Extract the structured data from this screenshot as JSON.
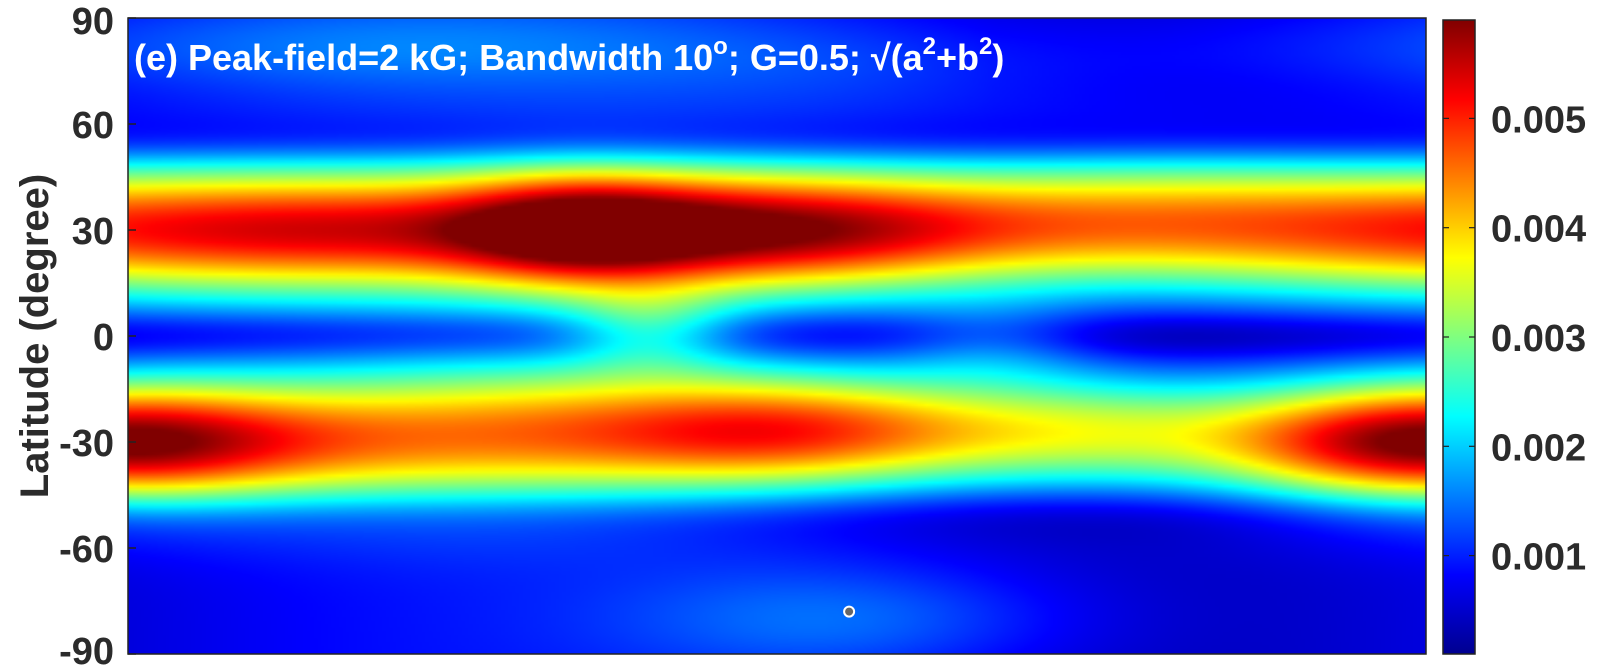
{
  "chart_data": {
    "type": "heatmap",
    "title": {
      "prefix": "(e) Peak-field=2 kG; Bandwidth 10",
      "sup1": "o",
      "mid": "; G=0.5; √(a",
      "sup2": "2",
      "mid2": "+b",
      "sup3": "2",
      "suffix": ")"
    },
    "ylabel": "Latitude (degree)",
    "xlabel": "",
    "ylim": [
      -90,
      90
    ],
    "yticks": [
      90,
      60,
      30,
      0,
      -30,
      -60,
      -90
    ],
    "ytick_labels": [
      "90",
      "60",
      "30",
      "0",
      "-30",
      "-60",
      "-90"
    ],
    "colorbar": {
      "colormap": "jet",
      "range": [
        0.0001,
        0.0059
      ],
      "ticks": [
        0.005,
        0.004,
        0.003,
        0.002,
        0.001
      ],
      "tick_labels": [
        "0.005",
        "0.004",
        "0.003",
        "0.002",
        "0.001"
      ]
    },
    "background_level": 0.0009,
    "features": [
      {
        "lon": 60,
        "lat": 30,
        "lon_width": 50,
        "lat_width": 13,
        "amp": 0.0035
      },
      {
        "lon": 180,
        "lat": 30,
        "lon_width": 55,
        "lat_width": 13,
        "amp": 0.0049
      },
      {
        "lon": 280,
        "lat": 33,
        "lon_width": 45,
        "lat_width": 14,
        "amp": 0.0024
      },
      {
        "lon": 345,
        "lat": 30,
        "lon_width": 45,
        "lat_width": 14,
        "amp": 0.0024
      },
      {
        "lon": 125,
        "lat": 30,
        "lon_width": 25,
        "lat_width": 12,
        "amp": 0.0019
      },
      {
        "lon": 20,
        "lat": -30,
        "lon_width": 55,
        "lat_width": 13,
        "amp": 0.0028
      },
      {
        "lon": 110,
        "lat": -27,
        "lon_width": 50,
        "lat_width": 15,
        "amp": 0.0023
      },
      {
        "lon": 190,
        "lat": -27,
        "lon_width": 45,
        "lat_width": 12,
        "amp": 0.0036
      },
      {
        "lon": 270,
        "lat": -27,
        "lon_width": 35,
        "lat_width": 12,
        "amp": 0.0019
      },
      {
        "lon": 350,
        "lat": -30,
        "lon_width": 35,
        "lat_width": 12,
        "amp": 0.0027
      },
      {
        "lon": 145,
        "lat": 2,
        "lon_width": 16,
        "lat_width": 8,
        "amp": 0.0012
      },
      {
        "lon": 240,
        "lat": -2,
        "lon_width": 20,
        "lat_width": 8,
        "amp": 0.0008
      },
      {
        "lon": 200,
        "lat": -80,
        "lon_width": 45,
        "lat_width": 12,
        "amp": 0.0008
      },
      {
        "lon": 60,
        "lat": 82,
        "lon_width": 90,
        "lat_width": 10,
        "amp": 0.0007
      },
      {
        "lon": 210,
        "lat": 75,
        "lon_width": 55,
        "lat_width": 12,
        "amp": 0.0004
      }
    ],
    "marker": {
      "lon": 200,
      "lat": -78
    }
  }
}
